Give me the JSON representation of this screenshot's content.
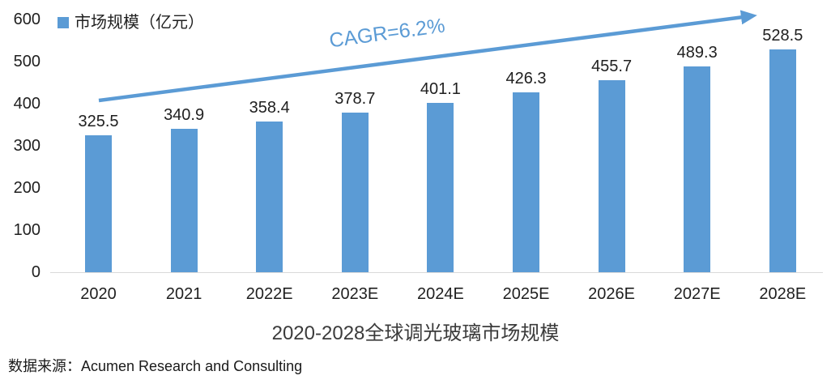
{
  "chart_data": {
    "type": "bar",
    "title": "2020-2028全球调光玻璃市场规模",
    "legend_label": "市场规模（亿元）",
    "legend_position": "top-left",
    "categories": [
      "2020",
      "2021",
      "2022E",
      "2023E",
      "2024E",
      "2025E",
      "2026E",
      "2027E",
      "2028E"
    ],
    "values": [
      325.5,
      340.9,
      358.4,
      378.7,
      401.1,
      426.3,
      455.7,
      489.3,
      528.5
    ],
    "xlabel": "",
    "ylabel": "",
    "ylim": [
      0,
      600
    ],
    "yticks": [
      0,
      100,
      200,
      300,
      400,
      500,
      600
    ],
    "grid": false,
    "annotation": "CAGR=6.2%"
  },
  "source_line": "数据来源：Acumen Research and Consulting",
  "colors": {
    "bar": "#5B9BD5",
    "arrow": "#5B9BD5",
    "axis_line": "#D9D9D9",
    "label_text": "#1f1f1f",
    "title_text": "#3b3b3b"
  }
}
